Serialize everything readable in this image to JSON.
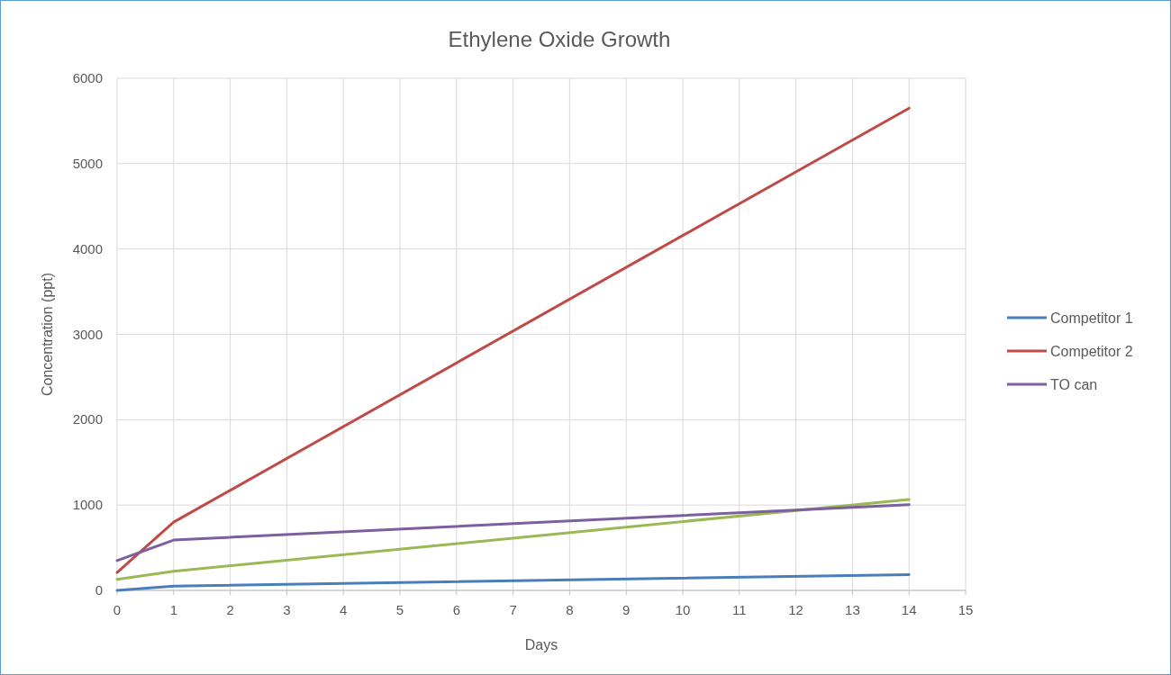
{
  "chart_data": {
    "type": "line",
    "title": "Ethylene Oxide Growth",
    "xlabel": "Days",
    "ylabel": "Concentration (ppt)",
    "x": [
      0,
      1,
      14
    ],
    "series": [
      {
        "name": "Competitor 1",
        "color": "#4a7ebb",
        "values": [
          0,
          50,
          185
        ]
      },
      {
        "name": "Competitor 2",
        "color": "#be4b48",
        "values": [
          210,
          800,
          5650
        ]
      },
      {
        "color": "#98b954",
        "values": [
          130,
          225,
          1065
        ]
      },
      {
        "name": "TO can",
        "color": "#7d5fa0",
        "values": [
          350,
          590,
          1005
        ]
      }
    ],
    "xlim": [
      0,
      15
    ],
    "xticks": [
      0,
      1,
      2,
      3,
      4,
      5,
      6,
      7,
      8,
      9,
      10,
      11,
      12,
      13,
      14,
      15
    ],
    "ylim": [
      0,
      6000
    ],
    "yticks": [
      0,
      1000,
      2000,
      3000,
      4000,
      5000,
      6000
    ],
    "grid": true,
    "legend": "right",
    "marker": "none",
    "line_style": "solid"
  }
}
